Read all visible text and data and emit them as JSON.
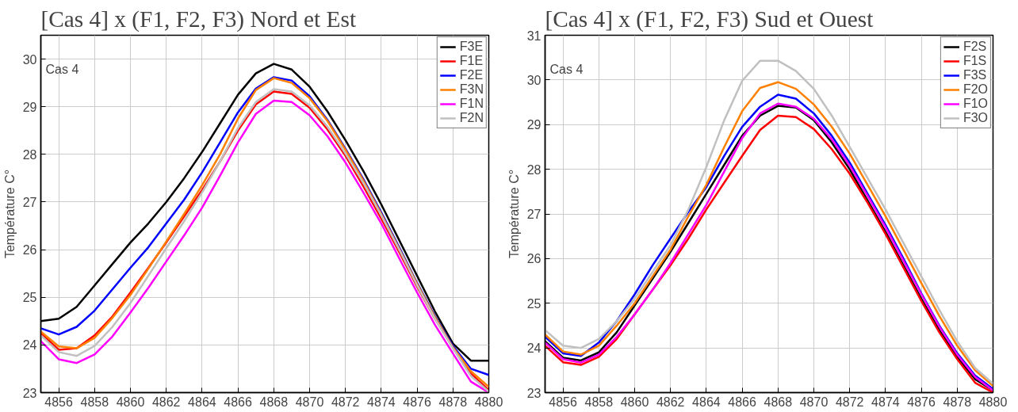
{
  "chart_data": [
    {
      "type": "line",
      "title": "[Cas 4] x (F1, F2, F3) Nord et Est",
      "ylabel": "Température C°",
      "annotations": [
        "Cas 4"
      ],
      "legend": "top right",
      "grid": true,
      "x": [
        4855,
        4856,
        4857,
        4858,
        4859,
        4860,
        4861,
        4862,
        4863,
        4864,
        4865,
        4866,
        4867,
        4868,
        4869,
        4870,
        4871,
        4872,
        4873,
        4874,
        4875,
        4876,
        4877,
        4878,
        4879,
        4880
      ],
      "xlim": [
        4855,
        4880
      ],
      "xticks": [
        4856,
        4858,
        4860,
        4862,
        4864,
        4866,
        4868,
        4870,
        4872,
        4874,
        4876,
        4878,
        4880
      ],
      "ylim": [
        23,
        30.5
      ],
      "yticks": [
        23,
        24,
        25,
        26,
        27,
        28,
        29,
        30
      ],
      "series": [
        {
          "name": "F3E",
          "color": "#000000",
          "values": [
            24.5,
            24.55,
            24.8,
            25.25,
            25.7,
            26.15,
            26.55,
            27.0,
            27.5,
            28.05,
            28.65,
            29.25,
            29.7,
            29.9,
            29.78,
            29.42,
            28.9,
            28.3,
            27.65,
            26.95,
            26.2,
            25.45,
            24.7,
            24.03,
            23.67,
            23.67
          ]
        },
        {
          "name": "F1E",
          "color": "#ff0000",
          "values": [
            24.25,
            23.9,
            23.93,
            24.2,
            24.6,
            25.1,
            25.62,
            26.15,
            26.7,
            27.25,
            27.85,
            28.5,
            29.05,
            29.32,
            29.27,
            28.98,
            28.52,
            27.97,
            27.33,
            26.65,
            25.95,
            25.22,
            24.55,
            23.95,
            23.4,
            23.05
          ]
        },
        {
          "name": "F2E",
          "color": "#0000ff",
          "values": [
            24.35,
            24.22,
            24.38,
            24.72,
            25.17,
            25.62,
            26.05,
            26.55,
            27.05,
            27.62,
            28.25,
            28.88,
            29.38,
            29.62,
            29.55,
            29.22,
            28.72,
            28.12,
            27.48,
            26.78,
            26.05,
            25.3,
            24.6,
            23.98,
            23.5,
            23.37
          ]
        },
        {
          "name": "F3N",
          "color": "#ff8000",
          "values": [
            24.28,
            23.97,
            23.93,
            24.15,
            24.57,
            25.05,
            25.6,
            26.17,
            26.75,
            27.35,
            28.0,
            28.75,
            29.35,
            29.6,
            29.5,
            29.18,
            28.7,
            28.1,
            27.45,
            26.75,
            26.02,
            25.28,
            24.58,
            23.95,
            23.45,
            23.12
          ]
        },
        {
          "name": "F1N",
          "color": "#ff00ff",
          "values": [
            24.08,
            23.7,
            23.62,
            23.8,
            24.18,
            24.68,
            25.2,
            25.75,
            26.3,
            26.88,
            27.55,
            28.25,
            28.85,
            29.13,
            29.1,
            28.82,
            28.38,
            27.83,
            27.2,
            26.55,
            25.82,
            25.1,
            24.42,
            23.82,
            23.23,
            23.0
          ]
        },
        {
          "name": "F2N",
          "color": "#c0c0c0",
          "values": [
            24.2,
            23.85,
            23.77,
            23.98,
            24.38,
            24.88,
            25.45,
            26.03,
            26.6,
            27.2,
            27.85,
            28.55,
            29.1,
            29.37,
            29.32,
            29.03,
            28.58,
            28.02,
            27.4,
            26.72,
            26.0,
            25.25,
            24.55,
            23.93,
            23.35,
            23.02
          ]
        }
      ]
    },
    {
      "type": "line",
      "title": "[Cas 4] x (F1, F2, F3) Sud et Ouest",
      "ylabel": "Température C°",
      "annotations": [
        "Cas 4"
      ],
      "legend": "top right",
      "grid": true,
      "x": [
        4855,
        4856,
        4857,
        4858,
        4859,
        4860,
        4861,
        4862,
        4863,
        4864,
        4865,
        4866,
        4867,
        4868,
        4869,
        4870,
        4871,
        4872,
        4873,
        4874,
        4875,
        4876,
        4877,
        4878,
        4879,
        4880
      ],
      "xlim": [
        4855,
        4880
      ],
      "xticks": [
        4856,
        4858,
        4860,
        4862,
        4864,
        4866,
        4868,
        4870,
        4872,
        4874,
        4876,
        4878,
        4880
      ],
      "ylim": [
        23,
        31
      ],
      "yticks": [
        23,
        24,
        25,
        26,
        27,
        28,
        29,
        30,
        31
      ],
      "series": [
        {
          "name": "F2S",
          "color": "#000000",
          "values": [
            24.15,
            23.78,
            23.72,
            23.9,
            24.35,
            24.95,
            25.55,
            26.15,
            26.8,
            27.45,
            28.1,
            28.75,
            29.2,
            29.42,
            29.38,
            29.1,
            28.6,
            28.0,
            27.3,
            26.6,
            25.85,
            25.1,
            24.4,
            23.8,
            23.3,
            23.05
          ]
        },
        {
          "name": "F1S",
          "color": "#ff0000",
          "values": [
            24.05,
            23.68,
            23.62,
            23.8,
            24.2,
            24.75,
            25.3,
            25.85,
            26.45,
            27.1,
            27.7,
            28.3,
            28.88,
            29.2,
            29.17,
            28.9,
            28.45,
            27.9,
            27.25,
            26.55,
            25.8,
            25.05,
            24.35,
            23.75,
            23.22,
            23.0
          ]
        },
        {
          "name": "F3S",
          "color": "#0000ff",
          "values": [
            24.25,
            23.88,
            23.82,
            24.12,
            24.6,
            25.2,
            25.85,
            26.45,
            27.05,
            27.6,
            28.3,
            28.95,
            29.4,
            29.67,
            29.58,
            29.25,
            28.75,
            28.15,
            27.45,
            26.75,
            26.0,
            25.22,
            24.5,
            23.88,
            23.38,
            23.08
          ]
        },
        {
          "name": "F2O",
          "color": "#ff8000",
          "values": [
            24.3,
            23.92,
            23.85,
            24.05,
            24.5,
            25.0,
            25.6,
            26.2,
            26.95,
            27.65,
            28.5,
            29.3,
            29.82,
            29.95,
            29.8,
            29.45,
            28.95,
            28.35,
            27.65,
            26.95,
            26.2,
            25.45,
            24.72,
            24.05,
            23.5,
            23.15
          ]
        },
        {
          "name": "F1O",
          "color": "#ff00ff",
          "values": [
            24.12,
            23.75,
            23.67,
            23.85,
            24.25,
            24.75,
            25.3,
            25.9,
            26.55,
            27.2,
            27.95,
            28.7,
            29.25,
            29.47,
            29.4,
            29.13,
            28.67,
            28.08,
            27.4,
            26.7,
            25.95,
            25.2,
            24.48,
            23.85,
            23.35,
            23.05
          ]
        },
        {
          "name": "F3O",
          "color": "#c0c0c0",
          "values": [
            24.4,
            24.05,
            24.0,
            24.2,
            24.6,
            25.1,
            25.7,
            26.3,
            27.1,
            28.05,
            29.1,
            29.98,
            30.43,
            30.43,
            30.2,
            29.8,
            29.2,
            28.5,
            27.8,
            27.1,
            26.35,
            25.6,
            24.85,
            24.15,
            23.55,
            23.2
          ]
        }
      ]
    }
  ]
}
